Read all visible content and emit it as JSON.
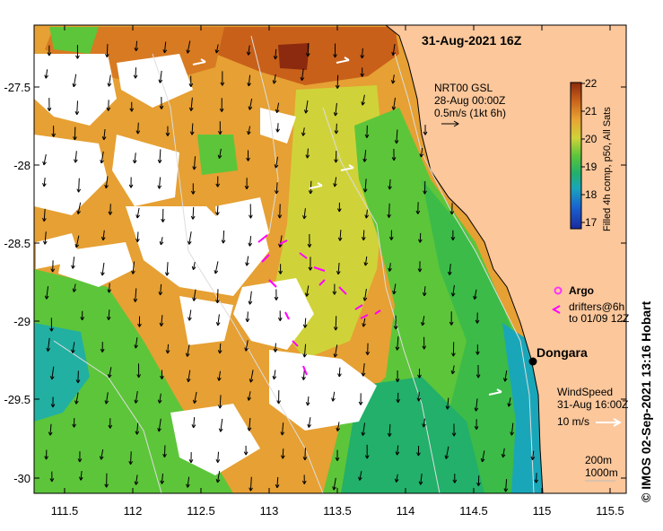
{
  "title": "31-Aug-2021 16Z",
  "current_legend": {
    "line1": "NRT00 GSL",
    "line2": "28-Aug 00:00Z",
    "line3": "0.5m/s (1kt 6h)"
  },
  "colorbar": {
    "label": "Filled 4h comp, p50, All Sats",
    "ticks": [
      "22",
      "21",
      "20",
      "19",
      "18",
      "17"
    ],
    "colors": [
      "#8b2a0e",
      "#c8601a",
      "#e9a233",
      "#cfd339",
      "#5dc53a",
      "#22b06a",
      "#1aa6b9",
      "#1a64d0",
      "#1a2a9e"
    ]
  },
  "argo_legend": {
    "label": "Argo"
  },
  "drifter_legend": {
    "line1": "drifters@6h",
    "line2": "to 01/09 12Z"
  },
  "place_label": "Dongara",
  "wind_legend": {
    "line1": "WindSpeed",
    "line2": "31-Aug 16:00Z",
    "line3": "10 m/s"
  },
  "depth_legend": {
    "line1": "200m",
    "line2": "1000m"
  },
  "credit": "© IMOS 02-Sep-2021 13:16 Hobart",
  "axes": {
    "lat_ticks": [
      "-27.5",
      "-28",
      "-28.5",
      "-29",
      "-29.5",
      "-30"
    ],
    "lon_ticks": [
      "111.5",
      "112",
      "112.5",
      "113",
      "113.5",
      "114",
      "114.5",
      "115",
      "115.5"
    ]
  },
  "colors": {
    "land": "#fbc79b",
    "cloud": "#ffffff",
    "argo": "#ff33ff",
    "drifter": "#ff00ff",
    "contour": "#dddddd"
  }
}
